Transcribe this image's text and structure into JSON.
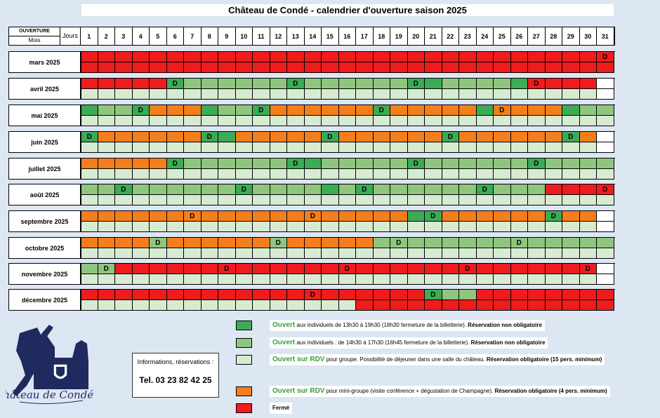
{
  "title": "Château de Condé - calendrier d'ouverture saison 2025",
  "header": {
    "ouverture": "OUVERTURE",
    "mois": "Mois",
    "jours": "Jours"
  },
  "days": [
    "1",
    "2",
    "3",
    "4",
    "5",
    "6",
    "7",
    "8",
    "9",
    "10",
    "11",
    "12",
    "13",
    "14",
    "15",
    "16",
    "17",
    "18",
    "19",
    "20",
    "21",
    "22",
    "23",
    "24",
    "25",
    "26",
    "27",
    "28",
    "29",
    "30",
    "31"
  ],
  "colors": {
    "G": "#3cab55",
    "L": "#8fc67e",
    "P": "#d7ebd2",
    "O": "#f47e1c",
    "R": "#ee1c1c",
    "W": "#ffffff"
  },
  "months": [
    {
      "name": "mars 2025",
      "top": "RRRRRRRRRRRRRRRRRRRRRRRRRRRRRRR",
      "bottom": "RRRRRRRRRRRRRRRRRRRRRRRRRRRRRRR",
      "d": [
        "31"
      ]
    },
    {
      "name": "avril 2025",
      "top": "RRRRRGLLLLLLGLLLLLLGGLLLLGRRRRW",
      "bottom": "PPPPPPPPPPPPPPPPPPPPPPPPPPPPPPW",
      "d": [
        "6",
        "13",
        "20",
        "27"
      ]
    },
    {
      "name": "mai 2025",
      "top": "GLLGOOOGLLGOOOOOOGOOOOOGOOOOGLL",
      "bottom": "PPPPPPPPPPPPPPPPPPPPPPPPPPPPPPP",
      "d": [
        "4",
        "11",
        "18",
        "25"
      ]
    },
    {
      "name": "juin 2025",
      "top": "GOOOOOOGGOOOOOGOOOOOOGOOOOOOGOW",
      "bottom": "PPPPPPPPPPPPPPPPPPPPPPPPPPPPPPW",
      "d": [
        "1",
        "8",
        "15",
        "22",
        "29"
      ]
    },
    {
      "name": "juillet 2025",
      "top": "OOOOOGLLLLLLGGLLLLLGLLLLLLGLLLL",
      "bottom": "PPPPPPPPPPPPPPPPPPPPPPPPPPPPPPP",
      "d": [
        "6",
        "13",
        "20",
        "27"
      ]
    },
    {
      "name": "août 2025",
      "top": "LLGLLLLLLGLLLLGLGLLLLLLGLLLRRRR",
      "bottom": "PPPPPPPPPPPPPPPPPPPPPPPPPPPPPPP",
      "d": [
        "3",
        "10",
        "17",
        "24",
        "31"
      ]
    },
    {
      "name": "septembre 2025",
      "top": "OOOOOOOOOOOOOOOOOOOGGOOOOOOGOOW",
      "bottom": "PPPPPPPPPPPPPPPPPPPPPPPPPPPPPPW",
      "d": [
        "7",
        "14",
        "21",
        "28"
      ]
    },
    {
      "name": "octobre 2025",
      "top": "OOOOLOOOOOOLOOOOOLLLLLLLLLLLLLL",
      "bottom": "PPPPPPPPPPPPPPPPPPPPPPPPPPPPPPP",
      "d": [
        "5",
        "12",
        "19",
        "26"
      ]
    },
    {
      "name": "novembre 2025",
      "top": "LLRRRRRRRRRRRRRRRRRRRRRRRRRRRRW",
      "bottom": "PPPPPPPPPPPPPPPPPPPPPPPPPPPPPPW",
      "d": [
        "2",
        "9",
        "16",
        "23",
        "30"
      ]
    },
    {
      "name": "décembre 2025",
      "top": "RRRRRRRRRRRRRRRRRRRRGLLRRRRRRRR",
      "bottom": "PPPPPPPPPPPPPPPPRRRRRRRRRRRRRRR",
      "d": [
        "14",
        "21"
      ]
    }
  ],
  "legend": [
    {
      "color": "G",
      "highlight": "Ouvert",
      "text": " aux individuels de 13h30 à 19h30 (18h30 fermeture de la billetterie). ",
      "bold": "Réservation non obligatoire"
    },
    {
      "color": "L",
      "highlight": "Ouvert",
      "text": " aux individuels : de 14h30 à 17h30 (16h45 fermeture de la billetterie). ",
      "bold": "Réservation non obligatoire"
    },
    {
      "color": "P",
      "highlight": "Ouvert sur RDV",
      "text": " pour groupe. Possibilité de déjeuner dans une salle du château. ",
      "bold": "Réservation obligatoire (15 pers.  minimum)"
    },
    {
      "color": "O",
      "highlight": "Ouvert sur RDV",
      "text": " pour mini-groupe (visite conférence + dégustation de Champagne). ",
      "bold": "Réservation obligatoire (4 pers. minimum)"
    },
    {
      "color": "R",
      "highlight": "",
      "text": "",
      "bold": "Fermé"
    }
  ],
  "info": {
    "label": "Informations, réservations :",
    "tel": "Tel. 03 23 82 42 25"
  },
  "logo_text": "Château de Condé"
}
